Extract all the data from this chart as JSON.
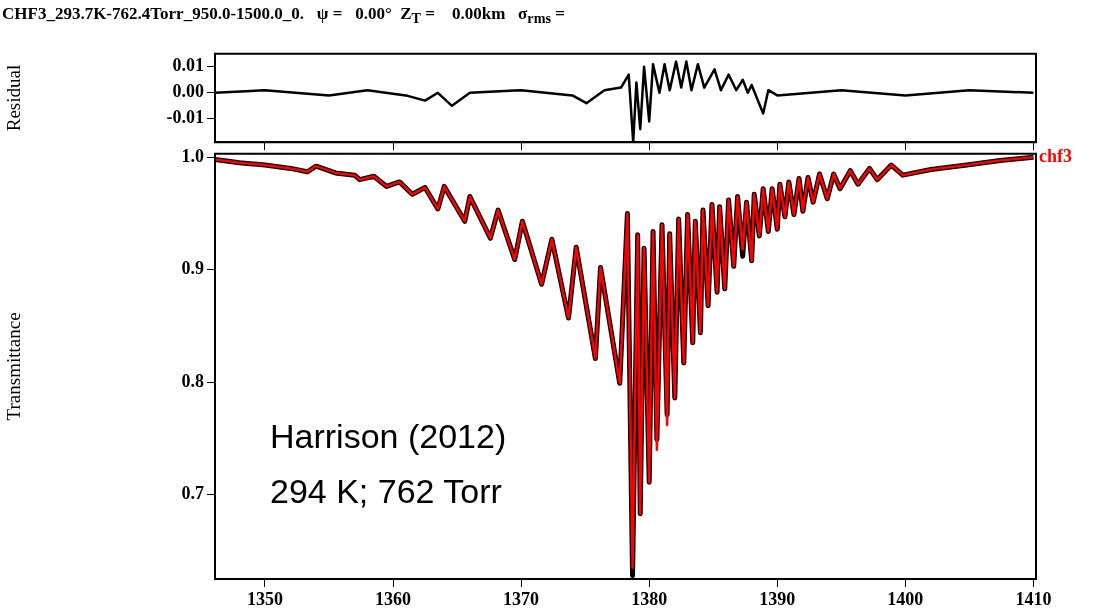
{
  "chart_data": [
    {
      "type": "line",
      "title": "CHF3_293.7K-762.4Torr_950.0-1500.0_0.   ψ =   0.00°  Z$_{T}$ =    0.00km   σ$_{rms}$ =",
      "ylabel": "Residual",
      "marker": "none",
      "line_style": "solid",
      "tick_labels": "y",
      "xlim": [
        1346.1,
        1410.2
      ],
      "xticks": [
        1350,
        1360,
        1370,
        1380,
        1390,
        1400,
        1410
      ],
      "ylim": [
        -0.019,
        0.015
      ],
      "yticks": [
        0.01,
        {
          "value": 0,
          "label": "0.00"
        },
        -0.01
      ],
      "x": [
        1346.1,
        1350,
        1355,
        1358,
        1361,
        1362.5,
        1363.5,
        1364.6,
        1366,
        1370,
        1374,
        1375.1,
        1376.5,
        1377.8,
        1378.4,
        1378.75,
        1379,
        1379.3,
        1379.6,
        1380,
        1380.3,
        1380.8,
        1381.2,
        1381.6,
        1382.1,
        1382.5,
        1382.9,
        1383.3,
        1383.8,
        1384.3,
        1385.1,
        1385.6,
        1386.2,
        1386.8,
        1387.3,
        1387.7,
        1388.0,
        1388.9,
        1389.3,
        1390,
        1395,
        1400,
        1405,
        1410
      ],
      "series": [
        {
          "color": "#000000",
          "values": [
            0.0,
            0.001,
            -0.001,
            0.001,
            -0.001,
            -0.003,
            0.0,
            -0.005,
            0.0,
            0.001,
            -0.001,
            -0.004,
            0.001,
            0.002,
            0.007,
            -0.019,
            0.004,
            -0.014,
            0.01,
            -0.011,
            0.011,
            0.0,
            0.011,
            0.001,
            0.012,
            0.002,
            0.012,
            0.001,
            0.011,
            0.002,
            0.009,
            0.001,
            0.007,
            0.001,
            0.005,
            0.0,
            0.003,
            -0.008,
            0.001,
            -0.001,
            0.001,
            -0.001,
            0.001,
            0.0
          ]
        }
      ]
    },
    {
      "type": "line",
      "ylabel": "Transmittance",
      "marker": "none",
      "line_style": "solid",
      "xlim": [
        1346.1,
        1410.2
      ],
      "xticks": [
        1350,
        1360,
        1370,
        1380,
        1390,
        1400,
        1410
      ],
      "ylim": [
        0.625,
        1.003
      ],
      "yticks": [
        {
          "value": 1,
          "label": "1.0"
        },
        0.9,
        0.8,
        0.7
      ],
      "annotations": [
        "Harrison (2012)",
        "294 K; 762 Torr"
      ],
      "x": [
        1346.1,
        1348,
        1350,
        1352,
        1353.3,
        1354,
        1355.5,
        1357,
        1357.4,
        1358.5,
        1359.5,
        1360.5,
        1361.5,
        1362.5,
        1363.5,
        1364,
        1365.6,
        1366,
        1367.6,
        1368.2,
        1369.5,
        1370.1,
        1371.6,
        1372.4,
        1373.7,
        1374.3,
        1375.8,
        1376.2,
        1377.7,
        1378.3,
        1378.7,
        1379.1,
        1379.3,
        1379.6,
        1380.0,
        1380.3,
        1380.6,
        1381.0,
        1381.4,
        1381.6,
        1382.0,
        1382.3,
        1382.7,
        1383.0,
        1383.4,
        1383.6,
        1384.0,
        1384.2,
        1384.6,
        1384.9,
        1385.3,
        1385.5,
        1385.9,
        1386.2,
        1386.6,
        1386.9,
        1387.3,
        1387.6,
        1388.0,
        1388.2,
        1388.6,
        1388.9,
        1389.3,
        1389.6,
        1390.0,
        1390.2,
        1390.6,
        1390.9,
        1391.3,
        1391.7,
        1392.0,
        1392.4,
        1392.8,
        1393.3,
        1393.9,
        1394.4,
        1394.9,
        1395.7,
        1396.3,
        1397.2,
        1397.8,
        1398.9,
        1399.8,
        1402.0,
        1404.8,
        1407.4,
        1410.0
      ],
      "series": [
        {
          "color": "#000000",
          "values": [
            0.998,
            0.995,
            0.993,
            0.99,
            0.987,
            0.992,
            0.986,
            0.984,
            0.98,
            0.983,
            0.974,
            0.978,
            0.967,
            0.973,
            0.954,
            0.974,
            0.943,
            0.965,
            0.928,
            0.953,
            0.909,
            0.943,
            0.887,
            0.927,
            0.857,
            0.92,
            0.821,
            0.902,
            0.799,
            0.95,
            0.628,
            0.931,
            0.683,
            0.919,
            0.711,
            0.934,
            0.749,
            0.94,
            0.771,
            0.932,
            0.786,
            0.945,
            0.817,
            0.949,
            0.835,
            0.943,
            0.844,
            0.953,
            0.868,
            0.958,
            0.88,
            0.956,
            0.883,
            0.962,
            0.903,
            0.965,
            0.912,
            0.96,
            0.908,
            0.967,
            0.93,
            0.972,
            0.934,
            0.972,
            0.936,
            0.976,
            0.947,
            0.978,
            0.949,
            0.981,
            0.952,
            0.982,
            0.96,
            0.985,
            0.963,
            0.985,
            0.972,
            0.988,
            0.976,
            0.99,
            0.98,
            0.993,
            0.984,
            0.989,
            0.993,
            0.997,
            1.0
          ]
        },
        {
          "name": "chf3",
          "color": "#ff0000",
          "values": [
            0.998,
            0.995,
            0.993,
            0.99,
            0.987,
            0.992,
            0.986,
            0.984,
            0.98,
            0.983,
            0.974,
            0.978,
            0.967,
            0.973,
            0.954,
            0.974,
            0.943,
            0.965,
            0.928,
            0.953,
            0.909,
            0.943,
            0.887,
            0.927,
            0.857,
            0.92,
            0.821,
            0.902,
            0.799,
            0.95,
            0.635,
            0.931,
            0.683,
            0.919,
            0.711,
            0.934,
            0.74,
            0.94,
            0.762,
            0.932,
            0.786,
            0.945,
            0.817,
            0.949,
            0.835,
            0.943,
            0.844,
            0.953,
            0.868,
            0.958,
            0.88,
            0.956,
            0.883,
            0.962,
            0.903,
            0.965,
            0.918,
            0.96,
            0.908,
            0.967,
            0.93,
            0.972,
            0.934,
            0.972,
            0.936,
            0.976,
            0.947,
            0.978,
            0.949,
            0.981,
            0.952,
            0.982,
            0.96,
            0.985,
            0.963,
            0.985,
            0.972,
            0.988,
            0.976,
            0.99,
            0.98,
            0.993,
            0.984,
            0.989,
            0.993,
            0.997,
            1.0
          ]
        }
      ]
    }
  ]
}
